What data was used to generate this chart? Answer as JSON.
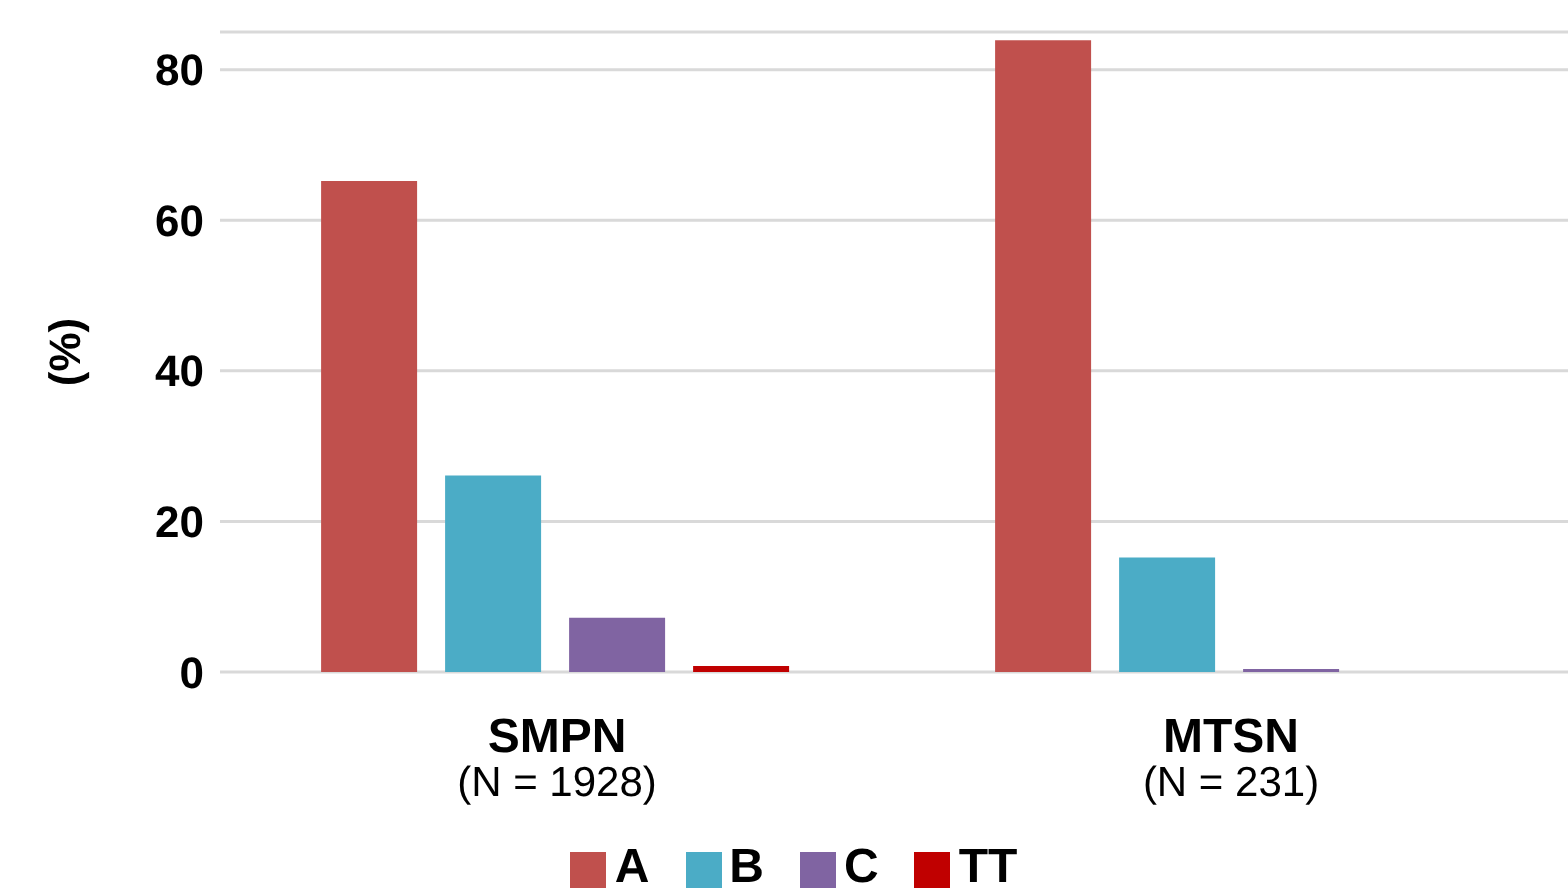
{
  "chart_data": {
    "type": "bar",
    "ylabel": "(%)",
    "categories": [
      "SMPN\n(N = 1928)",
      "MTSN\n(N = 231)"
    ],
    "series": [
      {
        "name": "A",
        "color": "#c0504d",
        "values": [
          65.2,
          83.9
        ]
      },
      {
        "name": "B",
        "color": "#4bacc6",
        "values": [
          26.1,
          15.2
        ]
      },
      {
        "name": "C",
        "color": "#8064a2",
        "values": [
          7.2,
          0.4
        ]
      },
      {
        "name": "TT",
        "color": "#c00000",
        "values": [
          0.8,
          0
        ]
      }
    ],
    "ylim": [
      0,
      85
    ],
    "yticks": [
      0,
      20,
      40,
      60,
      80
    ],
    "grid": "y",
    "legend": "bottom"
  }
}
